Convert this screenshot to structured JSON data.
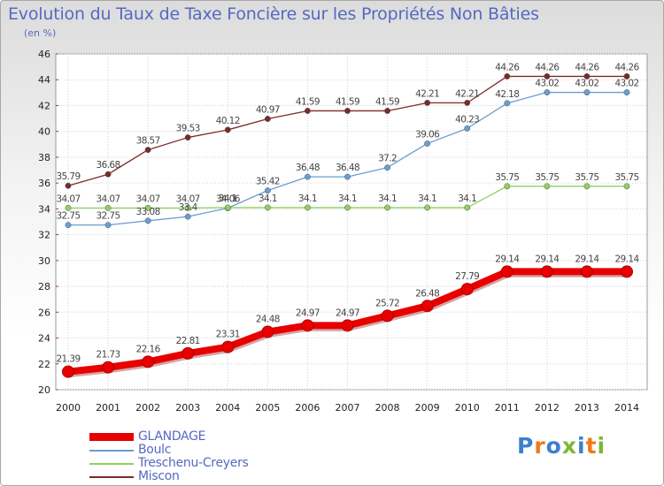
{
  "title": "Evolution du Taux de Taxe Foncière sur les Propriétés Non Bâties",
  "unit": "(en %)",
  "logo": {
    "text": "Proxiti",
    "colors": [
      "#3b7fd0",
      "#f07a18",
      "#3b7fd0",
      "#7bb832",
      "#3b7fd0",
      "#f07a18",
      "#7bb832"
    ]
  },
  "chart_data": {
    "type": "line",
    "x": [
      "2000",
      "2001",
      "2002",
      "2003",
      "2004",
      "2005",
      "2006",
      "2007",
      "2008",
      "2009",
      "2010",
      "2011",
      "2012",
      "2013",
      "2014"
    ],
    "ylim": [
      20,
      46
    ],
    "yticks": [
      "20",
      "22",
      "24",
      "26",
      "28",
      "30",
      "32",
      "34",
      "36",
      "38",
      "40",
      "42",
      "44",
      "46"
    ],
    "grid": true,
    "legend_position": "bottom-left",
    "series": [
      {
        "name": "GLANDAGE",
        "color": "#e80000",
        "values": [
          21.39,
          21.73,
          22.16,
          22.81,
          23.31,
          24.48,
          24.97,
          24.97,
          25.72,
          26.48,
          27.79,
          29.14,
          29.14,
          29.14,
          29.14
        ],
        "labels": [
          "21.39",
          "21.73",
          "22.16",
          "22.81",
          "23.31",
          "24.48",
          "24.97",
          "24.97",
          "25.72",
          "26.48",
          "27.79",
          "29.14",
          "29.14",
          "29.14",
          "29.14"
        ]
      },
      {
        "name": "Boulc",
        "color": "#6a9ed0",
        "values": [
          32.75,
          32.75,
          33.08,
          33.4,
          34.06,
          35.42,
          36.48,
          36.48,
          37.2,
          39.06,
          40.23,
          42.18,
          43.02,
          43.02,
          43.02
        ],
        "labels": [
          "32.75",
          "32.75",
          "33.08",
          "33.4",
          "34.06",
          "35.42",
          "36.48",
          "36.48",
          "37.2",
          "39.06",
          "40.23",
          "42.18",
          "43.02",
          "43.02",
          "43.02"
        ]
      },
      {
        "name": "Treschenu-Creyers",
        "color": "#90d060",
        "values": [
          34.07,
          34.07,
          34.07,
          34.07,
          34.1,
          34.1,
          34.1,
          34.1,
          34.1,
          34.1,
          34.1,
          35.75,
          35.75,
          35.75,
          35.75
        ],
        "labels": [
          "34.07",
          "34.07",
          "34.07",
          "34.07",
          "34.1",
          "34.1",
          "34.1",
          "34.1",
          "34.1",
          "34.1",
          "34.1",
          "35.75",
          "35.75",
          "35.75",
          "35.75"
        ]
      },
      {
        "name": "Miscon",
        "color": "#7a2a2a",
        "values": [
          35.79,
          36.68,
          38.57,
          39.53,
          40.12,
          40.97,
          41.59,
          41.59,
          41.59,
          42.21,
          42.21,
          44.26,
          44.26,
          44.26,
          44.26
        ],
        "labels": [
          "35.79",
          "36.68",
          "38.57",
          "39.53",
          "40.12",
          "40.97",
          "41.59",
          "41.59",
          "41.59",
          "42.21",
          "42.21",
          "44.26",
          "44.26",
          "44.26",
          "44.26"
        ]
      }
    ]
  }
}
